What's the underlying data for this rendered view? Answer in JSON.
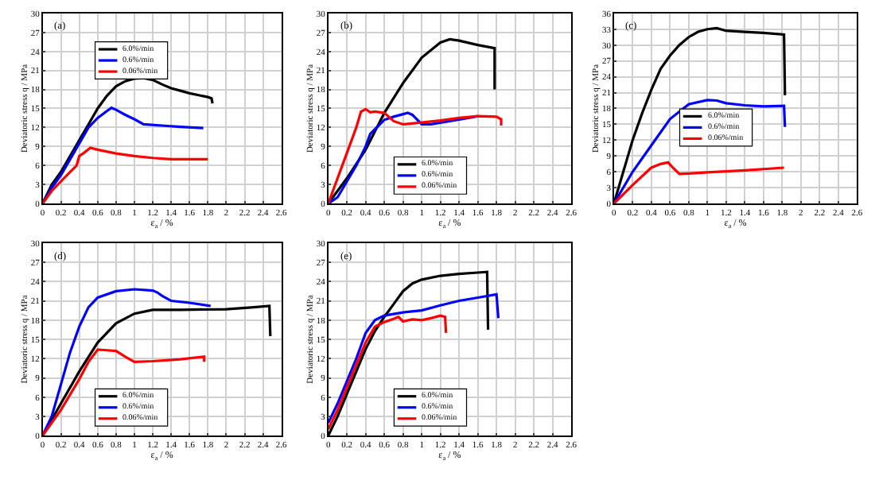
{
  "chart_data": [
    {
      "type": "line",
      "ylabel": "Deviatoric stress q / MPa",
      "xlabel": "ε$_{a}$ / %",
      "annotations": [
        "(a)"
      ],
      "xlim": [
        0,
        2.6
      ],
      "xticks": [
        0,
        0.2,
        0.4,
        0.6,
        0.8,
        1,
        1.2,
        1.4,
        1.6,
        1.8,
        2,
        2.2,
        2.4,
        2.6
      ],
      "ylim": [
        0,
        30
      ],
      "yticks": [
        0,
        3,
        6,
        9,
        12,
        15,
        18,
        21,
        24,
        27,
        30
      ],
      "grid": true,
      "legend": "top left",
      "series": [
        {
          "name": "6.0%/min",
          "color": "#000000",
          "x": [
            0,
            0.1,
            0.2,
            0.3,
            0.4,
            0.5,
            0.6,
            0.7,
            0.8,
            0.9,
            1.0,
            1.1,
            1.2,
            1.3,
            1.4,
            1.5,
            1.6,
            1.7,
            1.8,
            1.84,
            1.85
          ],
          "values": [
            0,
            3,
            5,
            7.5,
            10,
            12.5,
            15,
            17,
            18.5,
            19.3,
            19.7,
            19.8,
            19.5,
            18.8,
            18.2,
            17.8,
            17.4,
            17.1,
            16.8,
            16.6,
            15.8
          ]
        },
        {
          "name": "0.6%/min",
          "color": "#0000ff",
          "x": [
            0,
            0.1,
            0.2,
            0.3,
            0.4,
            0.5,
            0.6,
            0.7,
            0.75,
            0.8,
            0.9,
            1.0,
            1.1,
            1.3,
            1.5,
            1.75
          ],
          "values": [
            0,
            2.5,
            4.5,
            7,
            9.5,
            12,
            13.5,
            14.6,
            15.1,
            14.8,
            14,
            13.3,
            12.5,
            12.3,
            12.1,
            11.9
          ]
        },
        {
          "name": "0.06%/min",
          "color": "#ff0000",
          "x": [
            0,
            0.1,
            0.2,
            0.3,
            0.37,
            0.4,
            0.45,
            0.52,
            0.6,
            0.8,
            1.0,
            1.2,
            1.4,
            1.8
          ],
          "values": [
            0,
            2,
            3.5,
            5,
            6,
            7.5,
            8,
            8.8,
            8.5,
            7.9,
            7.5,
            7.2,
            7,
            7
          ]
        }
      ]
    },
    {
      "type": "line",
      "ylabel": "Deviatoric stress q / MPa",
      "xlabel": "ε$_{a}$ / %",
      "annotations": [
        "(b)"
      ],
      "xlim": [
        0,
        2.6
      ],
      "xticks": [
        0,
        0.2,
        0.4,
        0.6,
        0.8,
        1,
        1.2,
        1.4,
        1.6,
        1.8,
        2,
        2.2,
        2.4,
        2.6
      ],
      "ylim": [
        0,
        30
      ],
      "yticks": [
        0,
        3,
        6,
        9,
        12,
        15,
        18,
        21,
        24,
        27,
        30
      ],
      "grid": true,
      "legend": "bottom",
      "series": [
        {
          "name": "6.0%/min",
          "color": "#000000",
          "x": [
            0,
            0.2,
            0.4,
            0.6,
            0.8,
            1.0,
            1.2,
            1.3,
            1.4,
            1.6,
            1.78,
            1.78
          ],
          "values": [
            0,
            4,
            8.5,
            14.3,
            19,
            23,
            25.4,
            25.9,
            25.7,
            25,
            24.5,
            18
          ]
        },
        {
          "name": "0.6%/min",
          "color": "#0000ff",
          "x": [
            0,
            0.1,
            0.2,
            0.3,
            0.4,
            0.45,
            0.6,
            0.7,
            0.85,
            0.9,
            1.0,
            1.1,
            1.3,
            1.5,
            1.6
          ],
          "values": [
            0,
            1,
            3.5,
            6,
            9,
            11,
            13.2,
            13.7,
            14.3,
            14,
            12.5,
            12.5,
            13,
            13.5,
            13.8
          ]
        },
        {
          "name": "0.06%/min",
          "color": "#ff0000",
          "x": [
            0,
            0.1,
            0.2,
            0.3,
            0.35,
            0.4,
            0.45,
            0.5,
            0.6,
            0.7,
            0.8,
            1.0,
            1.2,
            1.4,
            1.6,
            1.8,
            1.85,
            1.85
          ],
          "values": [
            0,
            4,
            8,
            12,
            14.5,
            14.9,
            14.4,
            14.5,
            14.3,
            13,
            12.5,
            12.8,
            13.1,
            13.5,
            13.8,
            13.7,
            13.3,
            12.3
          ]
        }
      ]
    },
    {
      "type": "line",
      "ylabel": "Deviatoric stress q / MPa",
      "xlabel": "ε$_{a}$ / %",
      "annotations": [
        "(c)"
      ],
      "xlim": [
        0,
        2.6
      ],
      "xticks": [
        0,
        0.2,
        0.4,
        0.6,
        0.8,
        1,
        1.2,
        1.4,
        1.6,
        1.8,
        2,
        2.2,
        2.4,
        2.6
      ],
      "ylim": [
        0,
        36
      ],
      "yticks": [
        0,
        3,
        6,
        9,
        12,
        15,
        18,
        21,
        24,
        27,
        30,
        33,
        36
      ],
      "grid": true,
      "legend": "center",
      "series": [
        {
          "name": "6.0%/min",
          "color": "#000000",
          "x": [
            0,
            0.1,
            0.2,
            0.3,
            0.4,
            0.5,
            0.6,
            0.7,
            0.8,
            0.9,
            1.0,
            1.1,
            1.2,
            1.4,
            1.6,
            1.82,
            1.83
          ],
          "values": [
            0,
            6,
            12,
            17,
            21.5,
            25.5,
            28,
            30,
            31.5,
            32.5,
            33,
            33.2,
            32.7,
            32.5,
            32.3,
            32,
            20.5
          ]
        },
        {
          "name": "0.6%/min",
          "color": "#0000ff",
          "x": [
            0,
            0.2,
            0.4,
            0.6,
            0.8,
            1.0,
            1.1,
            1.2,
            1.4,
            1.6,
            1.82,
            1.83
          ],
          "values": [
            0,
            6,
            11,
            16,
            18.8,
            19.6,
            19.5,
            19,
            18.6,
            18.4,
            18.5,
            14.5
          ]
        },
        {
          "name": "0.06%/min",
          "color": "#ff0000",
          "x": [
            0,
            0.2,
            0.4,
            0.5,
            0.58,
            0.62,
            0.7,
            0.8,
            1.0,
            1.4,
            1.82
          ],
          "values": [
            0,
            3.5,
            6.8,
            7.5,
            7.8,
            7,
            5.6,
            5.7,
            5.9,
            6.3,
            6.8
          ]
        }
      ]
    },
    {
      "type": "line",
      "ylabel": "Deviatoric stress q / MPa",
      "xlabel": "ε$_{a}$ / %",
      "annotations": [
        "(d)"
      ],
      "xlim": [
        0,
        2.6
      ],
      "xticks": [
        0,
        0.2,
        0.4,
        0.6,
        0.8,
        1,
        1.2,
        1.4,
        1.6,
        1.8,
        2,
        2.2,
        2.4,
        2.6
      ],
      "ylim": [
        0,
        30
      ],
      "yticks": [
        0,
        3,
        6,
        9,
        12,
        15,
        18,
        21,
        24,
        27,
        30
      ],
      "grid": true,
      "legend": "bottom left",
      "series": [
        {
          "name": "6.0%/min",
          "color": "#000000",
          "x": [
            0,
            0.2,
            0.4,
            0.6,
            0.8,
            1.0,
            1.2,
            1.5,
            2.0,
            2.3,
            2.47,
            2.48
          ],
          "values": [
            0,
            5,
            10,
            14.5,
            17.5,
            19,
            19.6,
            19.6,
            19.7,
            20,
            20.2,
            15.5
          ]
        },
        {
          "name": "0.6%/min",
          "color": "#0000ff",
          "x": [
            0,
            0.1,
            0.2,
            0.3,
            0.4,
            0.5,
            0.6,
            0.8,
            1.0,
            1.2,
            1.25,
            1.3,
            1.4,
            1.6,
            1.83
          ],
          "values": [
            0,
            3,
            8,
            13,
            17,
            20,
            21.5,
            22.5,
            22.8,
            22.6,
            22.3,
            21.8,
            21,
            20.7,
            20.2
          ]
        },
        {
          "name": "0.06%/min",
          "color": "#ff0000",
          "x": [
            0,
            0.2,
            0.4,
            0.5,
            0.6,
            0.7,
            0.8,
            0.9,
            1.0,
            1.2,
            1.5,
            1.76,
            1.76
          ],
          "values": [
            0,
            4,
            8.8,
            11.5,
            13.4,
            13.3,
            13.2,
            12.3,
            11.5,
            11.6,
            11.9,
            12.3,
            11.5
          ]
        }
      ]
    },
    {
      "type": "line",
      "ylabel": "Deviatoric stress q / MPa",
      "xlabel": "ε$_{a}$ / %",
      "annotations": [
        "(e)"
      ],
      "xlim": [
        0,
        2.6
      ],
      "xticks": [
        0,
        0.2,
        0.4,
        0.6,
        0.8,
        1,
        1.2,
        1.4,
        1.6,
        1.8,
        2,
        2.2,
        2.4,
        2.6
      ],
      "ylim": [
        0,
        30
      ],
      "yticks": [
        0,
        3,
        6,
        9,
        12,
        15,
        18,
        21,
        24,
        27,
        30
      ],
      "grid": true,
      "legend": "bottom",
      "series": [
        {
          "name": "6.0%/min",
          "color": "#000000",
          "x": [
            0,
            0.1,
            0.2,
            0.3,
            0.4,
            0.5,
            0.6,
            0.7,
            0.8,
            0.9,
            1.0,
            1.2,
            1.4,
            1.6,
            1.7,
            1.71
          ],
          "values": [
            0,
            3,
            6.5,
            10,
            13.5,
            16.3,
            18.5,
            20.5,
            22.5,
            23.7,
            24.3,
            24.9,
            25.2,
            25.4,
            25.5,
            16.5
          ]
        },
        {
          "name": "0.6%/min",
          "color": "#0000ff",
          "x": [
            0,
            0.1,
            0.2,
            0.3,
            0.4,
            0.5,
            0.6,
            0.8,
            1.0,
            1.2,
            1.4,
            1.6,
            1.8,
            1.82
          ],
          "values": [
            2,
            5,
            8.5,
            12,
            16,
            18,
            18.7,
            19.2,
            19.5,
            20.3,
            21,
            21.5,
            22,
            18.3
          ]
        },
        {
          "name": "0.06%/min",
          "color": "#ff0000",
          "x": [
            0,
            0.1,
            0.2,
            0.3,
            0.4,
            0.5,
            0.6,
            0.7,
            0.75,
            0.8,
            0.9,
            1.0,
            1.1,
            1.2,
            1.25,
            1.26
          ],
          "values": [
            1,
            4,
            7.5,
            11,
            14.5,
            17,
            17.7,
            18.2,
            18.5,
            17.8,
            18.1,
            18,
            18.3,
            18.7,
            18.5,
            16
          ]
        }
      ]
    }
  ]
}
